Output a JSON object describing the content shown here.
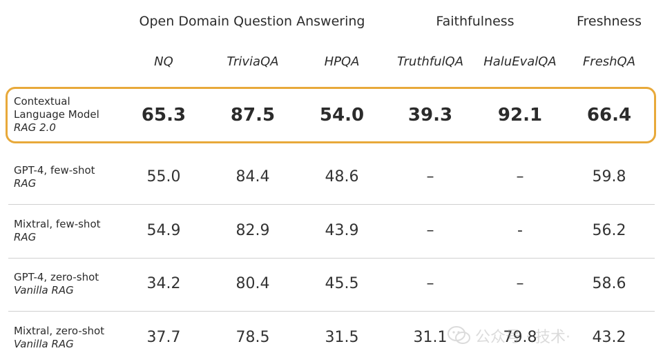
{
  "chart_data": {
    "type": "table",
    "column_groups": [
      {
        "label": "Open Domain Question Answering",
        "columns": [
          "NQ",
          "TriviaQA",
          "HPQA"
        ]
      },
      {
        "label": "Faithfulness",
        "columns": [
          "TruthfulQA",
          "HaluEvalQA"
        ]
      },
      {
        "label": "Freshness",
        "columns": [
          "FreshQA"
        ]
      }
    ],
    "columns": [
      "NQ",
      "TriviaQA",
      "HPQA",
      "TruthfulQA",
      "HaluEvalQA",
      "FreshQA"
    ],
    "rows": [
      {
        "model_lines": [
          "Contextual",
          "Language Model"
        ],
        "variant": "RAG 2.0",
        "highlighted": true,
        "cells": [
          "65.3",
          "87.5",
          "54.0",
          "39.3",
          "92.1",
          "66.4"
        ]
      },
      {
        "model_lines": [
          "GPT-4, few-shot"
        ],
        "variant": "RAG",
        "highlighted": false,
        "cells": [
          "55.0",
          "84.4",
          "48.6",
          "–",
          "–",
          "59.8"
        ]
      },
      {
        "model_lines": [
          "Mixtral, few-shot"
        ],
        "variant": "RAG",
        "highlighted": false,
        "cells": [
          "54.9",
          "82.9",
          "43.9",
          "–",
          "-",
          "56.2"
        ]
      },
      {
        "model_lines": [
          "GPT-4, zero-shot"
        ],
        "variant": "Vanilla RAG",
        "highlighted": false,
        "cells": [
          "34.2",
          "80.4",
          "45.5",
          "–",
          "–",
          "58.6"
        ]
      },
      {
        "model_lines": [
          "Mixtral, zero-shot"
        ],
        "variant": "Vanilla RAG",
        "highlighted": false,
        "cells": [
          "37.7",
          "78.5",
          "31.5",
          "31.1",
          "79.8",
          "43.2"
        ]
      }
    ]
  },
  "watermark": {
    "text": "公众号 · 技术·",
    "icon": "wechat-icon"
  },
  "colors": {
    "highlight_border": "#e8a93a",
    "divider": "#cfcfcf",
    "text": "#2b2b2b"
  }
}
